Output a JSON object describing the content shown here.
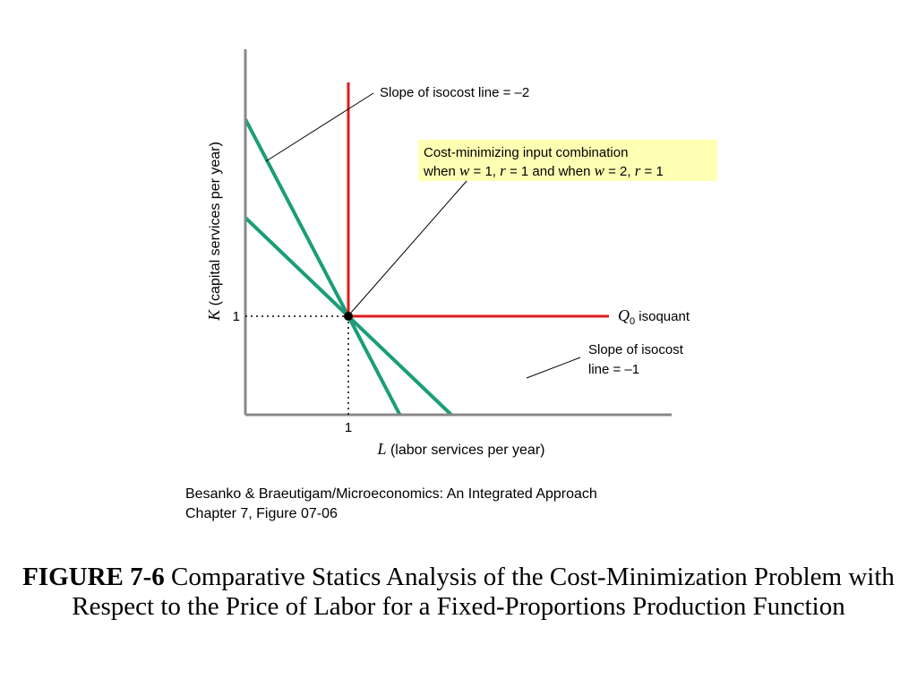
{
  "chart_data": {
    "type": "line",
    "xlabel_var": "L",
    "xlabel_rest": " (labor services per year)",
    "ylabel_var": "K",
    "ylabel_rest": " (capital services per year)",
    "x_ticks": [
      "1"
    ],
    "y_ticks": [
      "1"
    ],
    "xlim": [
      0,
      4
    ],
    "ylim": [
      0,
      4
    ],
    "grid": false,
    "optimum": {
      "x": 1,
      "y": 1
    },
    "isoquant": {
      "name_var": "Q",
      "name_sub": "0",
      "name_rest": " isoquant",
      "corner": [
        1,
        1
      ],
      "color": "#e01b1b"
    },
    "isocost_lines": [
      {
        "slope": -2,
        "points": [
          [
            0,
            3
          ],
          [
            1.5,
            0
          ]
        ],
        "color": "#1a9e78",
        "label": "Slope of isocost line = –2"
      },
      {
        "slope": -1,
        "points": [
          [
            0,
            2
          ],
          [
            2,
            0
          ]
        ],
        "color": "#1a9e78",
        "label_line1": "Slope of isocost",
        "label_line2": "line = –1"
      }
    ],
    "annotation": {
      "line1": "Cost-minimizing input combination",
      "line2_a": "when ",
      "line2_w1": "w",
      "line2_b": " = 1, ",
      "line2_r1": "r",
      "line2_c": " = 1 and when ",
      "line2_w2": "w",
      "line2_d": " = 2, ",
      "line2_r2": "r",
      "line2_e": " = 1",
      "background": "#ffffb3"
    }
  },
  "source": {
    "line1": "Besanko & Braeutigam/Microeconomics: An Integrated Approach",
    "line2": "Chapter 7, Figure 07-06"
  },
  "caption": {
    "bold": "FIGURE 7-6",
    "text": " Comparative Statics Analysis of the Cost-Minimization Problem with Respect to the Price of Labor for a Fixed-Proportions Production Function"
  }
}
